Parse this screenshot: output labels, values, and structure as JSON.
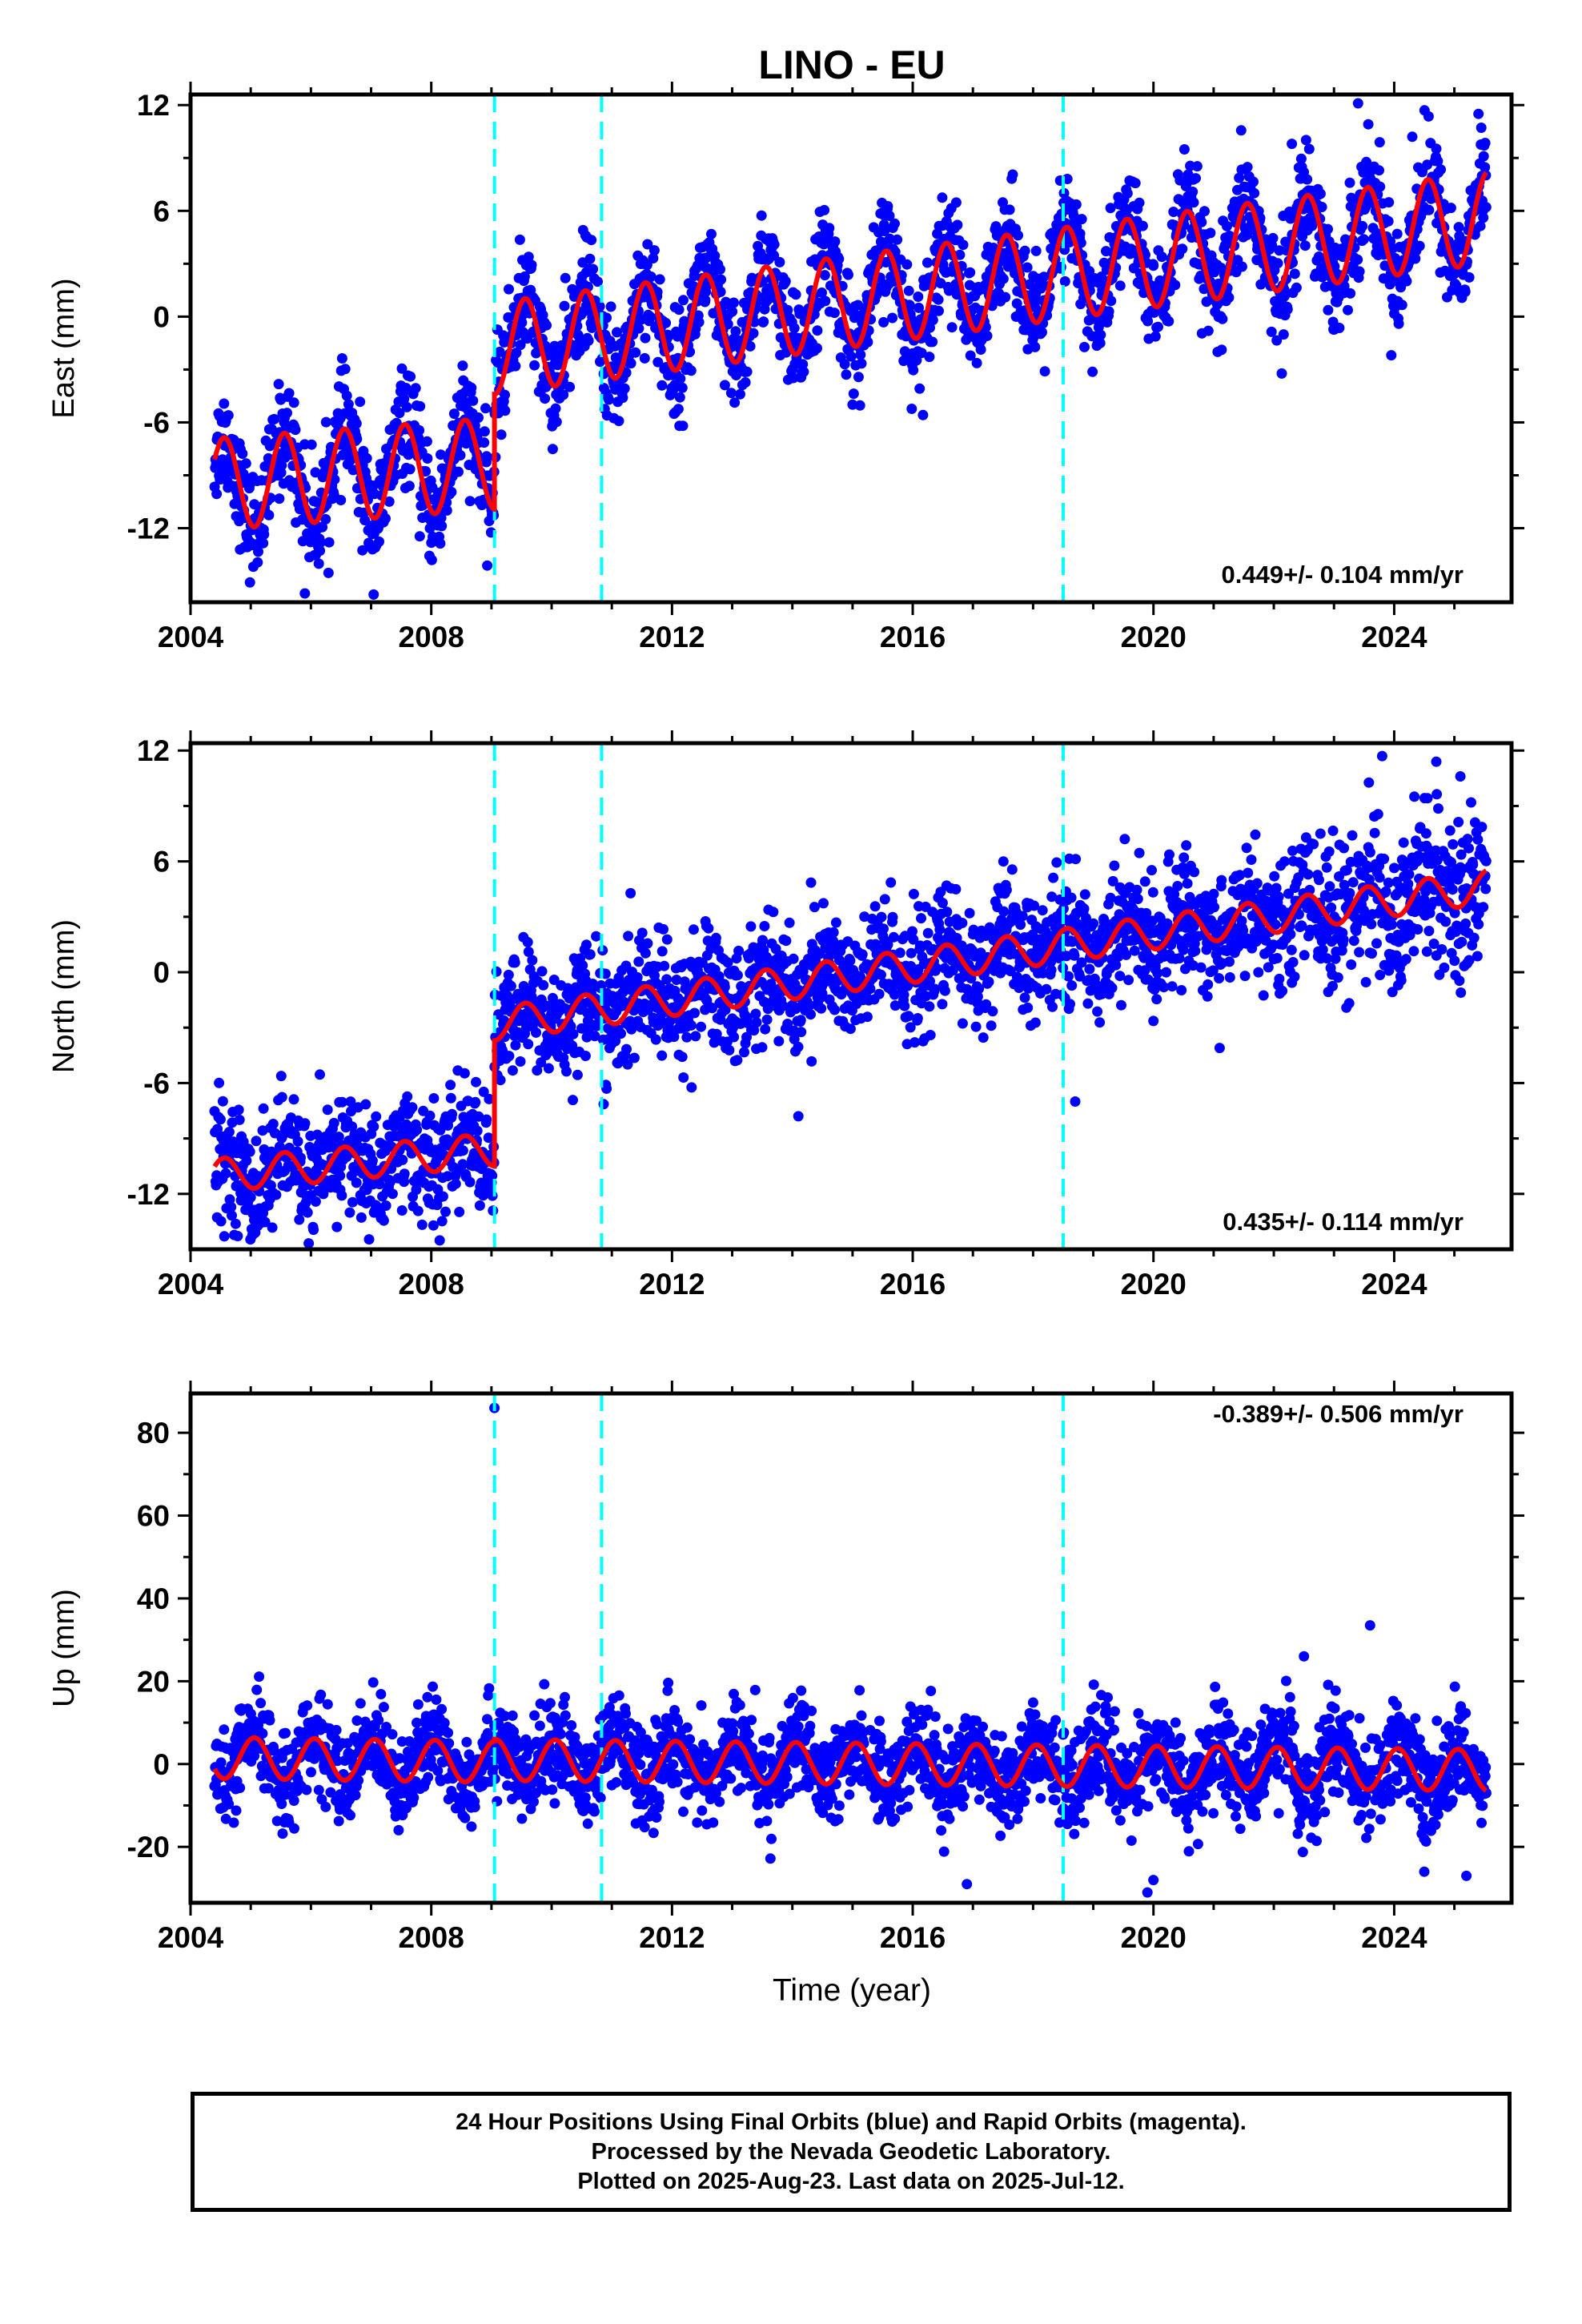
{
  "title": "LINO - EU",
  "xlabel": "Time (year)",
  "footer": {
    "line1": "24 Hour Positions Using Final Orbits (blue) and Rapid Orbits (magenta).",
    "line2": "Processed by the Nevada Geodetic Laboratory.",
    "line3": "Plotted on 2025-Aug-23. Last data on 2025-Jul-12."
  },
  "colors": {
    "points": "#0000ff",
    "model": "#ff0000",
    "offsets": "#00ffff"
  },
  "chart_data": [
    {
      "type": "scatter",
      "ylabel": "East (mm)",
      "rate": "0.449+/- 0.104 mm/yr",
      "xlim": [
        2004.0,
        2025.95
      ],
      "ylim": [
        -16.2,
        12.6
      ],
      "xticks": [
        2004,
        2008,
        2012,
        2016,
        2020,
        2024
      ],
      "yticks": [
        12,
        6,
        0,
        -6,
        -12
      ],
      "offsets": [
        2009.05,
        2010.83,
        2018.5
      ],
      "model": {
        "pre": {
          "t0": 2004.4,
          "v0": -9.5,
          "rate": 0.25
        },
        "jump_at": 2009.05,
        "post": {
          "v0": -1.8,
          "rate": 0.45
        },
        "amp": 2.6,
        "phase": 0.06
      },
      "outliers": [
        [
          2023.4,
          12.1
        ],
        [
          2005.9,
          -15.7
        ],
        [
          2024.3,
          10.2
        ],
        [
          2022.3,
          9.8
        ],
        [
          2025.4,
          11.5
        ]
      ]
    },
    {
      "type": "scatter",
      "ylabel": "North (mm)",
      "rate": "0.435+/- 0.114 mm/yr",
      "xlim": [
        2004.0,
        2025.95
      ],
      "ylim": [
        -15.0,
        12.4
      ],
      "xticks": [
        2004,
        2008,
        2012,
        2016,
        2020,
        2024
      ],
      "yticks": [
        12,
        6,
        0,
        -6,
        -12
      ],
      "offsets": [
        2009.05,
        2010.83,
        2018.5
      ],
      "model": {
        "pre": {
          "t0": 2004.4,
          "v0": -11.0,
          "rate": 0.3
        },
        "jump_at": 2009.05,
        "post": {
          "v0": -2.8,
          "rate": 0.45
        },
        "amp": 0.9,
        "phase": 0.06
      },
      "outliers": [
        [
          2023.8,
          11.7
        ],
        [
          2024.7,
          11.4
        ],
        [
          2014.1,
          -7.8
        ],
        [
          2021.1,
          -4.1
        ],
        [
          2018.7,
          -7.0
        ],
        [
          2025.1,
          10.6
        ]
      ]
    },
    {
      "type": "scatter",
      "ylabel": "Up (mm)",
      "rate": "-0.389+/- 0.506 mm/yr",
      "xlim": [
        2004.0,
        2025.95
      ],
      "ylim": [
        -33.5,
        89.5
      ],
      "xticks": [
        2004,
        2008,
        2012,
        2016,
        2020,
        2024
      ],
      "yticks": [
        80,
        60,
        40,
        20,
        0,
        -20
      ],
      "offsets": [
        2009.05,
        2010.83,
        2018.5
      ],
      "model": {
        "pre": {
          "t0": 2004.4,
          "v0": 1.5,
          "rate": -0.2
        },
        "jump_at": 2009.05,
        "post": {
          "v0": 1.0,
          "rate": -0.15
        },
        "amp": 5.0,
        "phase": 0.56
      },
      "outliers": [
        [
          2009.05,
          86.0
        ],
        [
          2023.6,
          33.5
        ],
        [
          2016.9,
          -29.0
        ],
        [
          2019.9,
          -31.0
        ],
        [
          2020.0,
          -28.0
        ],
        [
          2024.5,
          -26.0
        ],
        [
          2022.5,
          26.0
        ],
        [
          2025.2,
          -27.0
        ]
      ]
    }
  ]
}
